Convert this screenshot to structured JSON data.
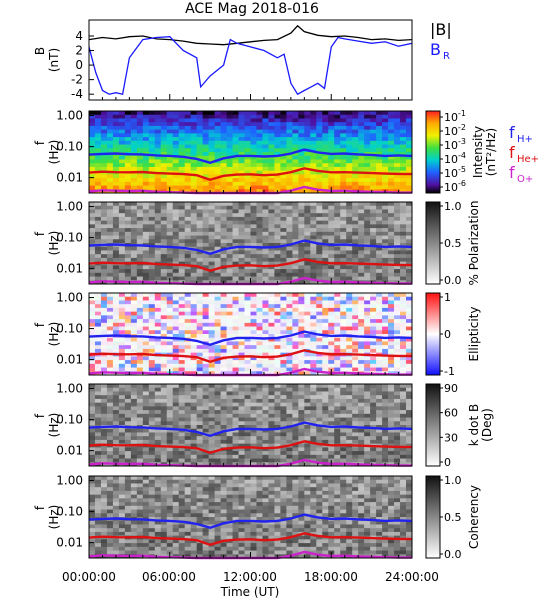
{
  "chart_data": {
    "type": "multi-panel",
    "title": "ACE Mag 2018-016",
    "xlabel": "Time (UT)",
    "x_ticks": [
      "00:00:00",
      "06:00:00",
      "12:00:00",
      "18:00:00",
      "24:00:00"
    ],
    "x_range_hours": [
      0,
      24
    ],
    "panels": [
      {
        "type": "line",
        "ylabel": "B",
        "yunit": "(nT)",
        "ylim": [
          -4.8,
          6.2
        ],
        "y_ticks": [
          "4",
          "2",
          "0",
          "-2",
          "-4"
        ],
        "legend": [
          "|B|",
          "B"
        ],
        "legend_sub": [
          "",
          "R"
        ],
        "series": [
          {
            "name": "|B|",
            "color": "#000000",
            "x": [
              0,
              1,
              2,
              3,
              4,
              5,
              6,
              7,
              8,
              9,
              10,
              11,
              12,
              13,
              14,
              15,
              15.5,
              16,
              17,
              18,
              19,
              20,
              21,
              22,
              23,
              24
            ],
            "y": [
              3.5,
              3.8,
              3.6,
              3.9,
              4.0,
              3.6,
              3.5,
              3.3,
              3.0,
              2.9,
              2.8,
              3.0,
              3.2,
              3.4,
              3.5,
              4.4,
              5.4,
              4.6,
              4.1,
              3.9,
              4.0,
              3.8,
              3.5,
              3.6,
              3.4,
              3.5
            ]
          },
          {
            "name": "B_R",
            "color": "#1a1aff",
            "x": [
              0,
              0.5,
              1,
              1.5,
              2,
              2.5,
              3,
              4,
              5,
              6,
              7,
              8,
              8.3,
              9,
              10,
              10.5,
              11,
              12,
              13,
              14,
              14.5,
              15,
              15.5,
              16,
              16.5,
              17,
              17.5,
              18,
              18.5,
              19,
              20,
              21,
              22,
              23,
              24
            ],
            "y": [
              2.5,
              -1.0,
              -3.5,
              -4.0,
              -3.8,
              -4.0,
              1.0,
              3.5,
              3.8,
              3.9,
              2.0,
              1.0,
              -3.0,
              -1.5,
              0.0,
              3.5,
              3.0,
              2.5,
              2.0,
              1.0,
              1.5,
              -2.5,
              -4.0,
              -3.5,
              -3.0,
              -2.5,
              -3.2,
              2.5,
              3.8,
              3.6,
              3.3,
              3.0,
              3.2,
              2.6,
              3.0
            ]
          }
        ]
      },
      {
        "type": "heatmap",
        "ylabel": "f",
        "yunit": "(Hz)",
        "y_ticks": [
          "1.00",
          "0.10",
          "0.01"
        ],
        "colorbar": {
          "scale": "log",
          "ticks": [
            "10",
            "10",
            "10",
            "10",
            "10",
            "10"
          ],
          "tick_exponents": [
            "-1",
            "-2",
            "-3",
            "-4",
            "-5",
            "-6"
          ],
          "label": "Intensity",
          "unit": "(nT²/Hz)"
        },
        "overlay_legend": [
          {
            "label": "f",
            "sub": "H+",
            "color": "#2222ee"
          },
          {
            "label": "f",
            "sub": "He+",
            "color": "#dd1111"
          },
          {
            "label": "f",
            "sub": "O+",
            "color": "#cc22cc"
          }
        ]
      },
      {
        "type": "heatmap",
        "ylabel": "f",
        "yunit": "(Hz)",
        "y_ticks": [
          "1.00",
          "0.10",
          "0.01"
        ],
        "colorbar": {
          "scale": "linear",
          "ticks": [
            "1.0",
            "0.5",
            "0.0"
          ],
          "label": "% Polarization"
        }
      },
      {
        "type": "heatmap",
        "ylabel": "f",
        "yunit": "(Hz)",
        "y_ticks": [
          "1.00",
          "0.10",
          "0.01"
        ],
        "colorbar": {
          "scale": "linear",
          "ticks": [
            "1",
            "0",
            "-1"
          ],
          "label": "Ellipticity"
        }
      },
      {
        "type": "heatmap",
        "ylabel": "f",
        "yunit": "(Hz)",
        "y_ticks": [
          "1.00",
          "0.10",
          "0.01"
        ],
        "colorbar": {
          "scale": "linear",
          "ticks": [
            "90",
            "60",
            "30",
            "0"
          ],
          "label": "k dot B",
          "unit": "(Deg)"
        }
      },
      {
        "type": "heatmap",
        "ylabel": "f",
        "yunit": "(Hz)",
        "y_ticks": [
          "1.00",
          "0.10",
          "0.01"
        ],
        "colorbar": {
          "scale": "linear",
          "ticks": [
            "1.0",
            "0.5",
            "0.0"
          ],
          "label": "Coherency"
        }
      }
    ],
    "gyrofrequency_lines": [
      {
        "name": "f_H+",
        "color": "#2222ee",
        "hz": [
          0.055,
          0.058,
          0.06,
          0.057,
          0.056,
          0.052,
          0.05,
          0.047,
          0.04,
          0.03,
          0.042,
          0.05,
          0.05,
          0.048,
          0.05,
          0.06,
          0.08,
          0.065,
          0.058,
          0.06,
          0.056,
          0.054,
          0.05,
          0.052,
          0.05
        ]
      },
      {
        "name": "f_He+",
        "color": "#dd1111",
        "hz": [
          0.0145,
          0.0155,
          0.015,
          0.0148,
          0.0152,
          0.014,
          0.0135,
          0.013,
          0.012,
          0.0085,
          0.0115,
          0.0125,
          0.0128,
          0.012,
          0.0125,
          0.015,
          0.02,
          0.0165,
          0.0148,
          0.015,
          0.0145,
          0.014,
          0.0135,
          0.0132,
          0.013
        ]
      },
      {
        "name": "f_O+",
        "color": "#cc22cc",
        "hz": [
          0.0036,
          0.0039,
          0.0038,
          0.0037,
          0.0038,
          0.0035,
          0.0034,
          0.0033,
          0.003,
          0.0022,
          0.0029,
          0.0031,
          0.0032,
          0.003,
          0.0031,
          0.0038,
          0.005,
          0.0041,
          0.0037,
          0.0038,
          0.0036,
          0.0035,
          0.0034,
          0.0033,
          0.0033
        ]
      }
    ]
  }
}
